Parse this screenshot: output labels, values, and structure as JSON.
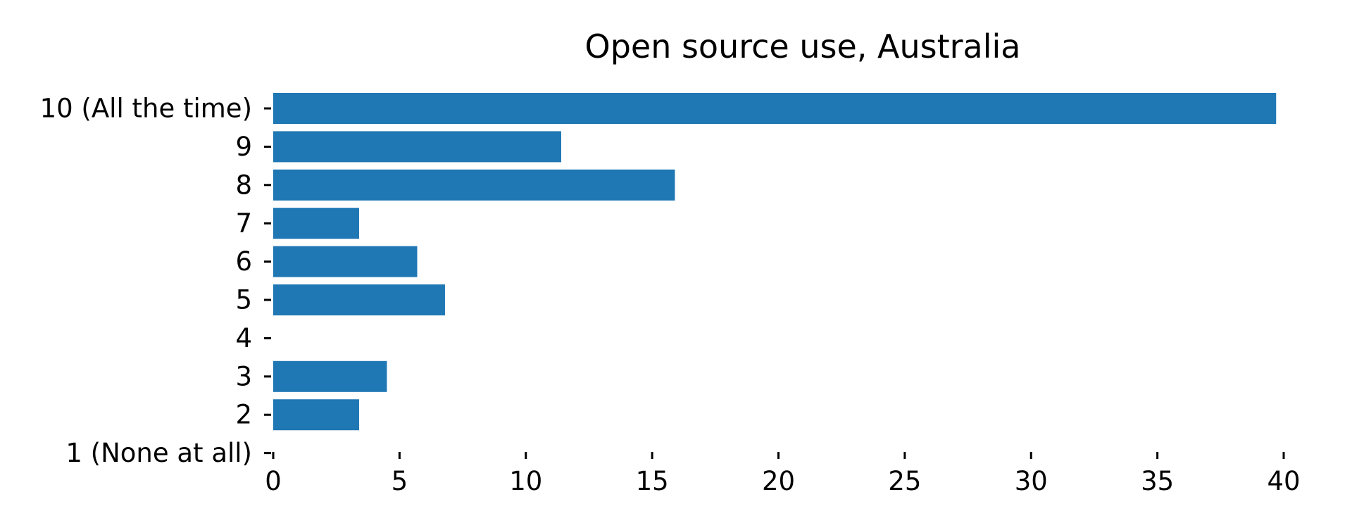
{
  "chart_data": {
    "type": "bar",
    "orientation": "horizontal",
    "title": "Open source use, Australia",
    "xlabel": "",
    "ylabel": "",
    "categories": [
      "10 (All the time)",
      "9",
      "8",
      "7",
      "6",
      "5",
      "4",
      "3",
      "2",
      "1 (None at all)"
    ],
    "values": [
      39.7,
      11.4,
      15.9,
      3.4,
      5.7,
      6.8,
      0,
      4.5,
      3.4,
      0
    ],
    "xlim": [
      0,
      40
    ],
    "xticks": [
      0,
      5,
      10,
      15,
      20,
      25,
      30,
      35,
      40
    ],
    "grid": false,
    "bar_color": "#1f77b4"
  }
}
